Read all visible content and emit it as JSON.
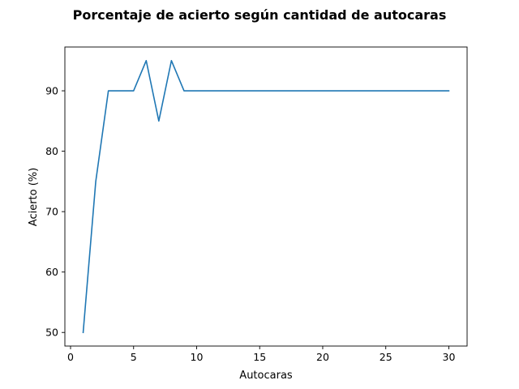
{
  "chart_data": {
    "type": "line",
    "title": "Porcentaje de acierto según cantidad de autocaras",
    "xlabel": "Autocaras",
    "ylabel": "Acierto (%)",
    "xlim": [
      -0.45,
      31.45
    ],
    "ylim": [
      47.75,
      97.25
    ],
    "xticks": [
      0,
      5,
      10,
      15,
      20,
      25,
      30
    ],
    "yticks": [
      50,
      60,
      70,
      80,
      90
    ],
    "grid": false,
    "series": [
      {
        "color": "#1f77b4",
        "x": [
          1,
          2,
          3,
          4,
          5,
          6,
          7,
          8,
          9,
          10,
          11,
          12,
          13,
          14,
          15,
          16,
          17,
          18,
          19,
          20,
          21,
          22,
          23,
          24,
          25,
          26,
          27,
          28,
          29,
          30
        ],
        "y": [
          50,
          75,
          90,
          90,
          90,
          95,
          85,
          95,
          90,
          90,
          90,
          90,
          90,
          90,
          90,
          90,
          90,
          90,
          90,
          90,
          90,
          90,
          90,
          90,
          90,
          90,
          90,
          90,
          90,
          90
        ]
      }
    ]
  }
}
